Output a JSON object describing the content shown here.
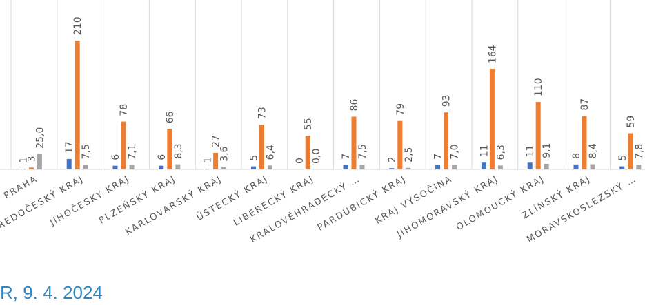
{
  "footer": {
    "text": "R, 9. 4. 2024"
  },
  "chart_data": {
    "type": "bar",
    "categories": [
      "PRAHA",
      "STŘEDOČESKÝ KRAJ",
      "JIHOČESKÝ KRAJ",
      "PLZEŇSKÝ KRAJ",
      "KARLOVARSKÝ KRAJ",
      "ÚSTECKÝ KRAJ",
      "LIBERECKÝ KRAJ",
      "KRÁLOVÉHRADECKÝ …",
      "PARDUBICKÝ KRAJ",
      "KRAJ VYSOČINA",
      "JIHOMORAVSKÝ KRAJ",
      "OLOMOUCKÝ KRAJ",
      "ZLÍNSKÝ KRAJ",
      "MORAVSKOSLEZSKÝ …"
    ],
    "series": [
      {
        "color": "#4472c4",
        "values": [
          1,
          17,
          6,
          6,
          1,
          5,
          0,
          7,
          2,
          7,
          11,
          11,
          8,
          5
        ],
        "labels": [
          "1",
          "17",
          "6",
          "6",
          "1",
          "5",
          "0",
          "7",
          "2",
          "7",
          "11",
          "11",
          "8",
          "5"
        ]
      },
      {
        "color": "#ed7d31",
        "values": [
          3,
          210,
          78,
          66,
          27,
          73,
          55,
          86,
          79,
          93,
          164,
          110,
          87,
          59
        ],
        "labels": [
          "3",
          "210",
          "78",
          "66",
          "27",
          "73",
          "55",
          "86",
          "79",
          "93",
          "164",
          "110",
          "87",
          "59"
        ]
      },
      {
        "color": "#a5a5a5",
        "values": [
          25.0,
          7.5,
          7.1,
          8.3,
          3.6,
          6.4,
          0.0,
          7.5,
          2.5,
          7.0,
          6.3,
          9.1,
          8.4,
          7.8
        ],
        "labels": [
          "25,0",
          "7,5",
          "7,1",
          "8,3",
          "3,6",
          "6,4",
          "0,0",
          "7,5",
          "2,5",
          "7,0",
          "6,3",
          "9,1",
          "8,4",
          "7,8"
        ]
      }
    ],
    "grid": "vertical separators between categories",
    "legend": "none"
  }
}
